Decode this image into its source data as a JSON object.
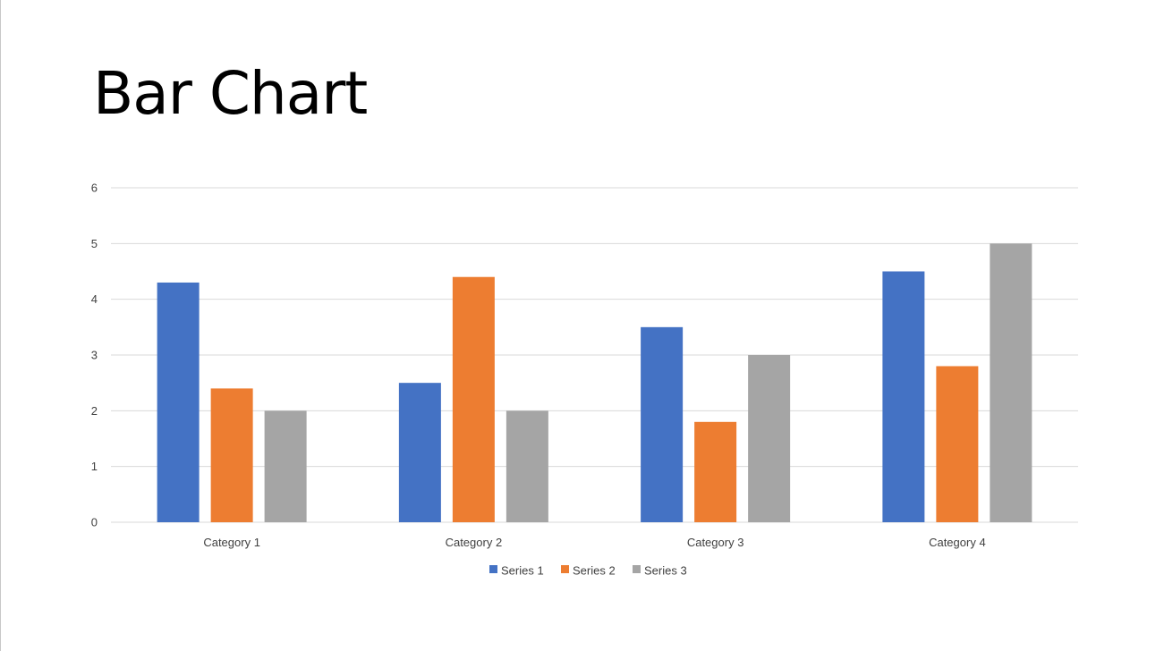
{
  "slide": {
    "title": "Bar Chart"
  },
  "chart_data": {
    "type": "bar",
    "title": "",
    "xlabel": "",
    "ylabel": "",
    "categories": [
      "Category 1",
      "Category 2",
      "Category 3",
      "Category 4"
    ],
    "series": [
      {
        "name": "Series 1",
        "color": "#4472C4",
        "values": [
          4.3,
          2.5,
          3.5,
          4.5
        ]
      },
      {
        "name": "Series 2",
        "color": "#ED7D31",
        "values": [
          2.4,
          4.4,
          1.8,
          2.8
        ]
      },
      {
        "name": "Series 3",
        "color": "#A5A5A5",
        "values": [
          2,
          2,
          3,
          5
        ]
      }
    ],
    "ylim": [
      0,
      6
    ],
    "yticks": [
      "0",
      "1",
      "2",
      "3",
      "4",
      "5",
      "6"
    ],
    "grid": true,
    "legend_position": "bottom",
    "gridline_color": "#D9D9D9"
  }
}
